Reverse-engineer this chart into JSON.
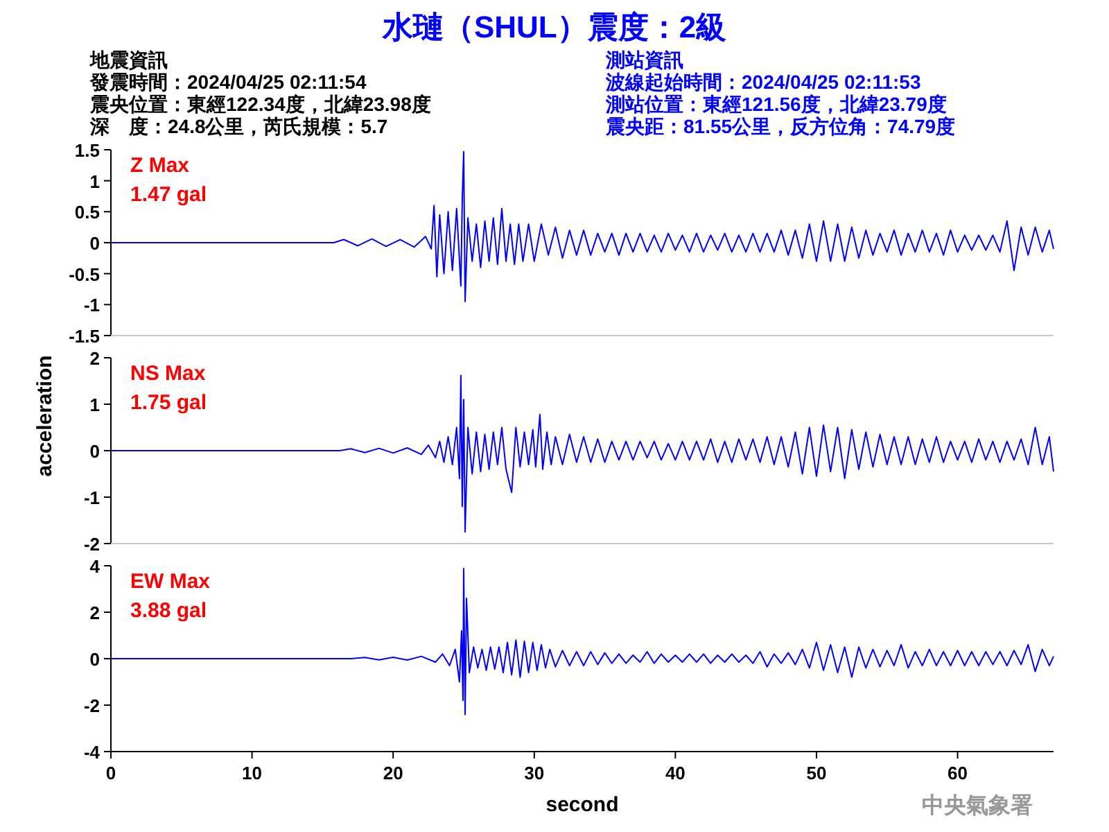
{
  "chart_data": [
    {
      "type": "line",
      "title": "水璉（SHUL）震度：2級",
      "color": "#0000ff",
      "xlim": [
        0,
        66.8
      ],
      "ylim": [
        -1.5,
        1.5
      ],
      "yticks": [
        1.5,
        1,
        0.5,
        0,
        -0.5,
        -1,
        -1.5
      ],
      "tick_labels": "y",
      "annotations": [
        "地震資訊",
        "發震時間：2024/04/25 02:11:54",
        "震央位置：東經122.34度，北緯23.98度",
        "深　度：24.8公里，芮氏規模：5.7",
        "測站資訊",
        "波線起始時間：2024/04/25 02:11:53",
        "測站位置：東經121.56度，北緯23.79度",
        "震央距：81.55公里，反方位角：74.79度",
        "Z Max",
        "1.47 gal"
      ],
      "x": [
        0,
        15.8,
        16.5,
        17.5,
        18.5,
        19.5,
        20.5,
        21.5,
        22.3,
        22.7,
        22.9,
        23.1,
        23.3,
        23.6,
        23.9,
        24.2,
        24.5,
        24.8,
        24.9,
        25.0,
        25.1,
        25.3,
        25.6,
        25.9,
        26.2,
        26.5,
        26.8,
        27.1,
        27.4,
        27.7,
        28.0,
        28.3,
        28.6,
        28.9,
        29.2,
        29.6,
        30,
        30.5,
        31,
        31.5,
        32,
        32.5,
        33,
        33.5,
        34,
        34.5,
        35,
        35.5,
        36,
        36.5,
        37,
        37.5,
        38,
        38.5,
        39,
        39.5,
        40,
        40.5,
        41,
        41.5,
        42,
        42.5,
        43,
        43.5,
        44,
        44.5,
        45,
        45.5,
        46,
        46.5,
        47,
        47.5,
        48,
        48.5,
        49,
        49.5,
        50,
        50.5,
        51,
        51.5,
        52,
        52.5,
        53,
        53.5,
        54,
        54.5,
        55,
        55.5,
        56,
        56.5,
        57,
        57.5,
        58,
        58.5,
        59,
        59.5,
        60,
        60.5,
        61,
        61.5,
        62,
        62.5,
        63,
        63.5,
        64,
        64.5,
        65,
        65.5,
        66,
        66.5,
        66.8
      ],
      "values": [
        0,
        0,
        0.05,
        -0.05,
        0.06,
        -0.06,
        0.05,
        -0.07,
        0.1,
        -0.1,
        0.6,
        -0.55,
        0.45,
        -0.5,
        0.5,
        -0.45,
        0.55,
        -0.7,
        0.7,
        1.47,
        -0.95,
        0.4,
        -0.3,
        0.3,
        -0.4,
        0.35,
        -0.3,
        0.4,
        -0.35,
        0.55,
        -0.3,
        0.3,
        -0.35,
        0.3,
        -0.3,
        0.3,
        -0.3,
        0.3,
        -0.2,
        0.25,
        -0.25,
        0.2,
        -0.2,
        0.2,
        -0.2,
        0.15,
        -0.15,
        0.15,
        -0.2,
        0.15,
        -0.15,
        0.15,
        -0.15,
        0.12,
        -0.15,
        0.15,
        -0.12,
        0.12,
        -0.15,
        0.15,
        -0.15,
        0.12,
        -0.12,
        0.15,
        -0.15,
        0.12,
        -0.15,
        0.15,
        -0.15,
        0.15,
        -0.15,
        0.2,
        -0.2,
        0.2,
        -0.25,
        0.3,
        -0.3,
        0.35,
        -0.3,
        0.3,
        -0.3,
        0.25,
        -0.25,
        0.2,
        -0.2,
        0.15,
        -0.15,
        0.2,
        -0.2,
        0.15,
        -0.15,
        0.2,
        -0.15,
        0.15,
        -0.2,
        0.2,
        -0.15,
        0.12,
        -0.12,
        0.12,
        -0.12,
        0.12,
        -0.15,
        0.35,
        -0.45,
        0.25,
        -0.2,
        0.25,
        -0.15,
        0.2,
        -0.1
      ]
    },
    {
      "type": "line",
      "ylabel": "acceleration",
      "color": "#0000ff",
      "xlim": [
        0,
        66.8
      ],
      "ylim": [
        -2,
        2
      ],
      "yticks": [
        2,
        1,
        0,
        -1,
        -2
      ],
      "tick_labels": "y",
      "annotations": [
        "NS Max",
        "1.75 gal"
      ],
      "x": [
        0,
        16.2,
        17,
        18,
        19,
        20,
        21,
        22,
        22.5,
        23,
        23.3,
        23.6,
        23.9,
        24.2,
        24.5,
        24.7,
        24.8,
        24.9,
        25.0,
        25.1,
        25.3,
        25.6,
        25.9,
        26.2,
        26.5,
        26.8,
        27.1,
        27.4,
        27.7,
        28.0,
        28.4,
        28.7,
        29.0,
        29.3,
        29.6,
        29.9,
        30.1,
        30.4,
        30.6,
        30.9,
        31.2,
        31.5,
        32,
        32.5,
        33,
        33.5,
        34,
        34.5,
        35,
        35.5,
        36,
        36.5,
        37,
        37.5,
        38,
        38.5,
        39,
        39.5,
        40,
        40.5,
        41,
        41.5,
        42,
        42.5,
        43,
        43.5,
        44,
        44.5,
        45,
        45.5,
        46,
        46.5,
        47,
        47.5,
        48,
        48.5,
        49,
        49.5,
        50,
        50.5,
        51,
        51.5,
        52,
        52.5,
        53,
        53.5,
        54,
        54.5,
        55,
        55.5,
        56,
        56.5,
        57,
        57.5,
        58,
        58.5,
        59,
        59.5,
        60,
        60.5,
        61,
        61.5,
        62,
        62.5,
        63,
        63.5,
        64,
        64.5,
        65,
        65.5,
        66,
        66.5,
        66.8
      ],
      "values": [
        0,
        0,
        0.04,
        -0.04,
        0.05,
        -0.05,
        0.06,
        -0.08,
        0.12,
        -0.15,
        0.2,
        -0.25,
        0.3,
        -0.3,
        0.5,
        -0.6,
        1.62,
        -1.2,
        1.1,
        -1.75,
        0.5,
        -0.5,
        0.4,
        -0.45,
        0.35,
        -0.4,
        0.4,
        -0.3,
        0.5,
        -0.4,
        -0.9,
        0.5,
        -0.35,
        0.4,
        -0.3,
        0.45,
        -0.35,
        0.78,
        -0.4,
        0.4,
        -0.3,
        0.3,
        -0.3,
        0.35,
        -0.25,
        0.3,
        -0.25,
        0.25,
        -0.25,
        0.2,
        -0.2,
        0.2,
        -0.2,
        0.2,
        -0.15,
        0.2,
        -0.2,
        0.15,
        -0.2,
        0.2,
        -0.2,
        0.2,
        -0.2,
        0.25,
        -0.25,
        0.2,
        -0.25,
        0.25,
        -0.2,
        0.25,
        -0.25,
        0.3,
        -0.3,
        0.3,
        -0.35,
        0.4,
        -0.5,
        0.5,
        -0.55,
        0.55,
        -0.45,
        0.5,
        -0.6,
        0.45,
        -0.4,
        0.4,
        -0.35,
        0.35,
        -0.3,
        0.3,
        -0.3,
        0.3,
        -0.3,
        0.25,
        -0.25,
        0.3,
        -0.25,
        0.2,
        -0.2,
        0.2,
        -0.25,
        0.25,
        -0.2,
        0.2,
        -0.25,
        0.2,
        -0.2,
        0.25,
        -0.3,
        0.5,
        -0.3,
        0.3,
        -0.45
      ]
    },
    {
      "type": "line",
      "xlabel": "second",
      "color": "#0000ff",
      "xlim": [
        0,
        66.8
      ],
      "ylim": [
        -4,
        4
      ],
      "xticks": [
        0,
        10,
        20,
        30,
        40,
        50,
        60
      ],
      "yticks": [
        4,
        2,
        0,
        -2,
        -4
      ],
      "annotations": [
        "EW Max",
        "3.88 gal",
        "中央氣象署"
      ],
      "x": [
        0,
        17,
        18,
        19,
        20,
        21,
        22,
        23,
        23.5,
        24,
        24.4,
        24.7,
        24.85,
        24.95,
        25.0,
        25.1,
        25.2,
        25.4,
        25.7,
        26,
        26.3,
        26.6,
        26.9,
        27.2,
        27.5,
        27.8,
        28.1,
        28.4,
        28.7,
        29.0,
        29.3,
        29.6,
        29.9,
        30.2,
        30.5,
        30.8,
        31.1,
        31.5,
        32,
        32.5,
        33,
        33.5,
        34,
        34.5,
        35,
        35.5,
        36,
        36.5,
        37,
        37.5,
        38,
        38.5,
        39,
        39.5,
        40,
        40.5,
        41,
        41.5,
        42,
        42.5,
        43,
        43.5,
        44,
        44.5,
        45,
        45.5,
        46,
        46.5,
        47,
        47.5,
        48,
        48.5,
        49,
        49.5,
        50,
        50.5,
        51,
        51.5,
        52,
        52.5,
        53,
        53.5,
        54,
        54.5,
        55,
        55.5,
        56,
        56.5,
        57,
        57.5,
        58,
        58.5,
        59,
        59.5,
        60,
        60.5,
        61,
        61.5,
        62,
        62.5,
        63,
        63.5,
        64,
        64.5,
        65,
        65.5,
        66,
        66.5,
        66.8
      ],
      "values": [
        0,
        0,
        0.05,
        -0.05,
        0.06,
        -0.06,
        0.1,
        -0.15,
        0.2,
        -0.3,
        0.4,
        -1.0,
        1.2,
        -1.8,
        3.88,
        -2.4,
        2.6,
        -0.6,
        0.5,
        -0.4,
        0.4,
        -0.5,
        0.5,
        -0.45,
        0.5,
        -0.6,
        0.7,
        -0.7,
        0.8,
        -0.8,
        0.75,
        -0.6,
        0.7,
        -0.5,
        0.6,
        -0.4,
        0.4,
        -0.35,
        0.35,
        -0.3,
        0.3,
        -0.3,
        0.3,
        -0.25,
        0.25,
        -0.2,
        0.2,
        -0.2,
        0.15,
        -0.15,
        0.3,
        -0.2,
        0.2,
        -0.15,
        0.15,
        -0.15,
        0.2,
        -0.15,
        0.2,
        -0.2,
        0.15,
        -0.15,
        0.2,
        -0.15,
        0.15,
        -0.2,
        0.3,
        -0.35,
        0.2,
        -0.2,
        0.25,
        -0.25,
        0.4,
        -0.4,
        0.7,
        -0.5,
        0.6,
        -0.6,
        0.5,
        -0.8,
        0.5,
        -0.4,
        0.4,
        -0.35,
        0.35,
        -0.3,
        0.6,
        -0.4,
        0.3,
        -0.3,
        0.4,
        -0.3,
        0.3,
        -0.3,
        0.35,
        -0.3,
        0.3,
        -0.3,
        0.3,
        -0.25,
        0.3,
        -0.3,
        0.35,
        -0.25,
        0.6,
        -0.55,
        0.4,
        -0.3,
        0.1
      ]
    }
  ]
}
